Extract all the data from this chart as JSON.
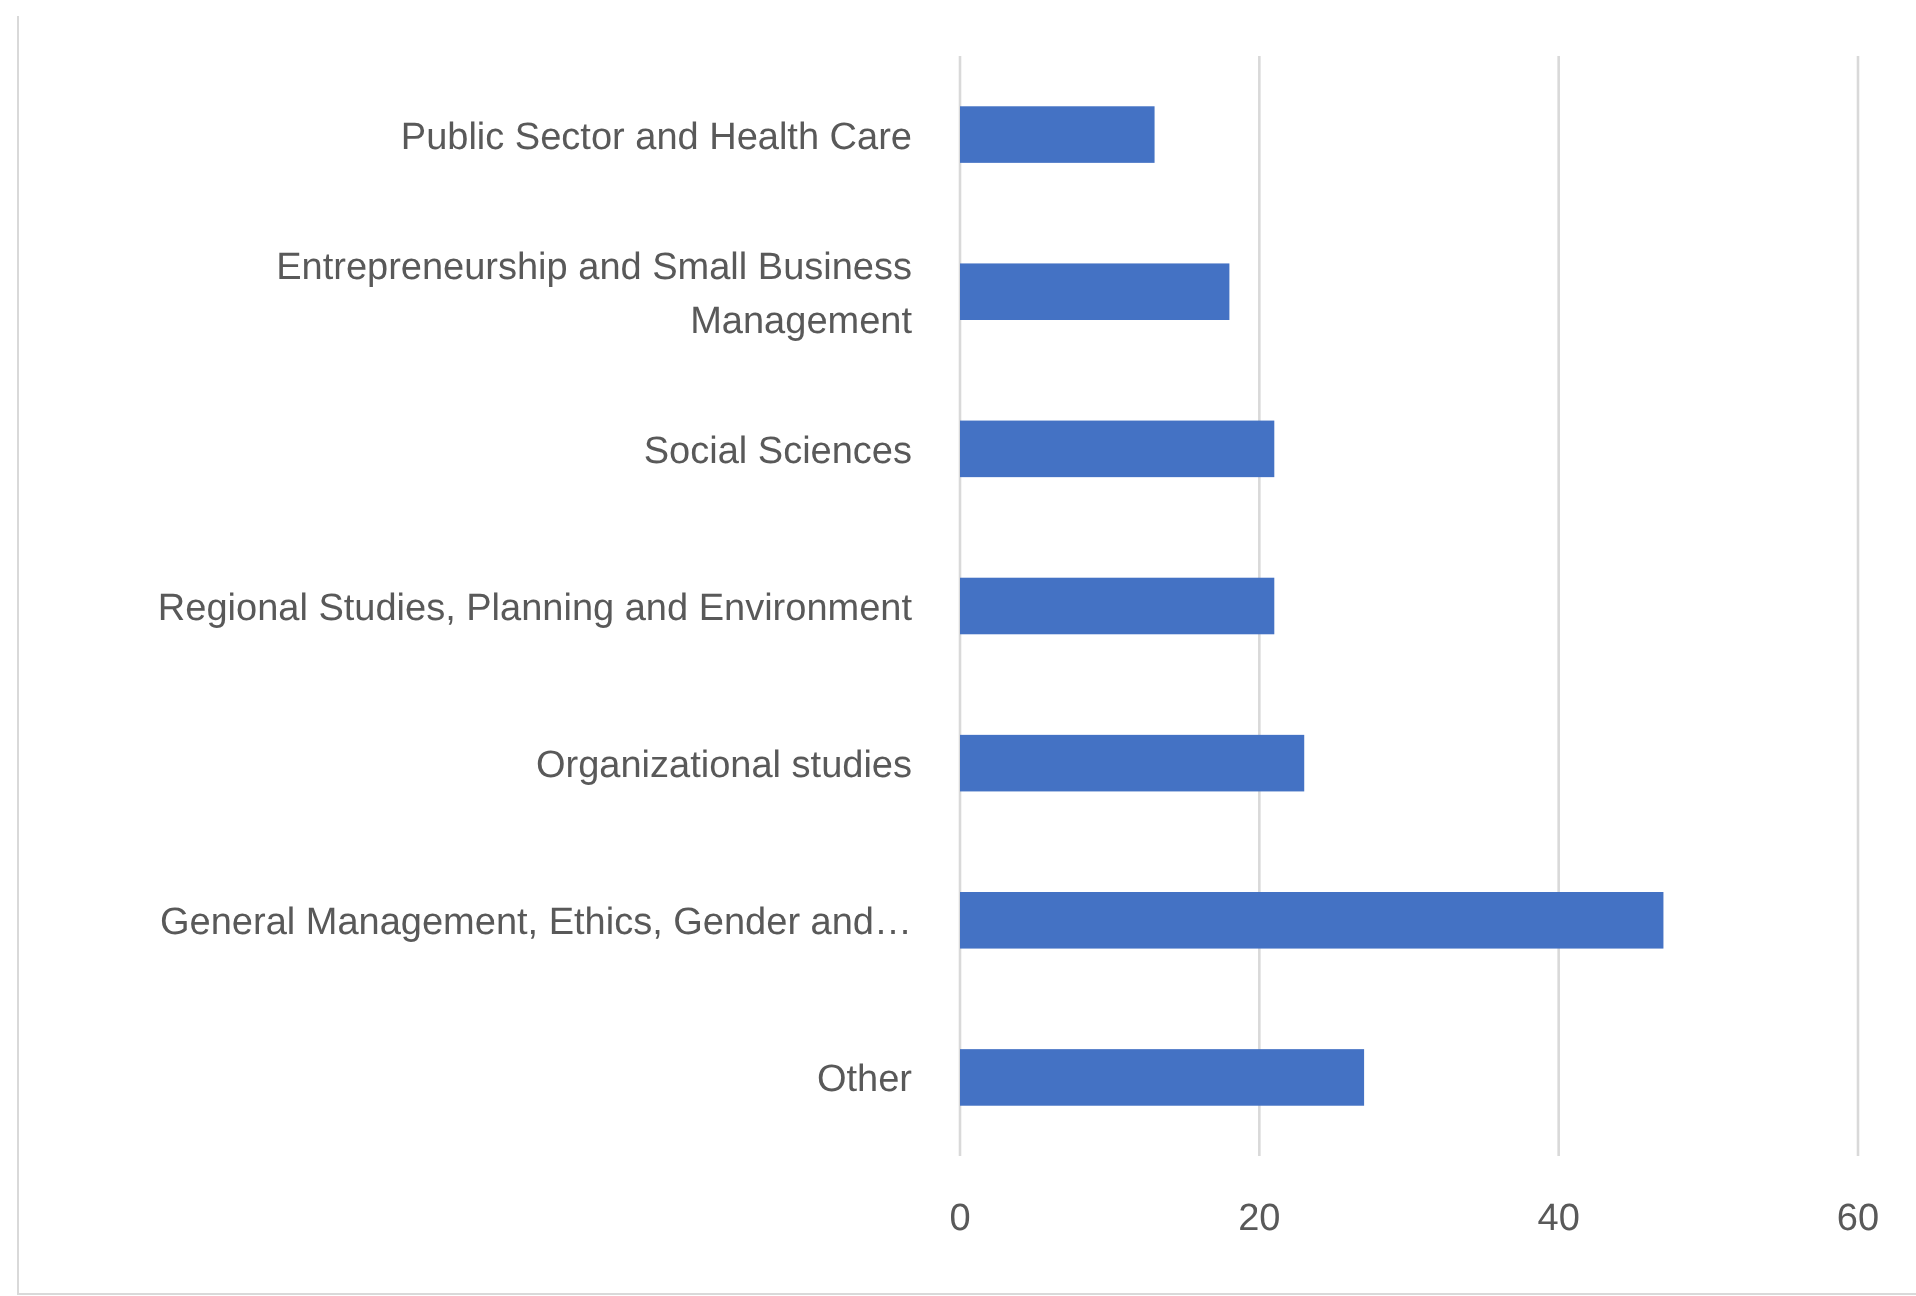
{
  "chart_data": {
    "type": "bar",
    "orientation": "horizontal",
    "categories": [
      "Public Sector and Health Care",
      "Entrepreneurship and Small Business Management",
      "Social Sciences",
      "Regional Studies, Planning and Environment",
      "Organizational studies",
      "General Management, Ethics, Gender and…",
      "Other"
    ],
    "values": [
      13,
      18,
      21,
      21,
      23,
      47,
      27
    ],
    "color": "#4472c4",
    "xlim": [
      0,
      60
    ],
    "xticks": [
      0,
      20,
      40,
      60
    ],
    "grid": "x"
  }
}
